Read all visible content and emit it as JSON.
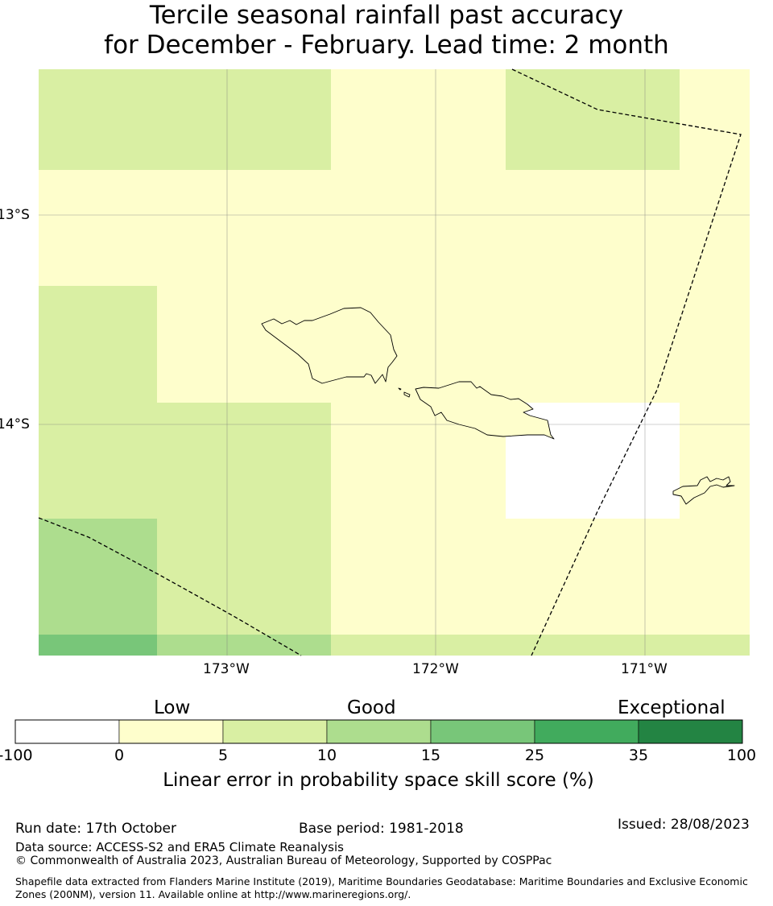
{
  "title": {
    "line1": "Tercile seasonal rainfall past accuracy",
    "line2": "for December - February. Lead time: 2 month"
  },
  "map": {
    "lat_labels": [
      "13°S",
      "14°S"
    ],
    "lon_labels": [
      "173°W",
      "172°W",
      "171°W"
    ],
    "colors": {
      "c0": "#fefecc",
      "c5": "#d9efa3",
      "c10": "#addd8e",
      "c15": "#78c679",
      "nodata": "#ffffff",
      "boundary": "#000000"
    }
  },
  "colorbar": {
    "categories": [
      "Low",
      "Good",
      "Exceptional"
    ],
    "ticks": [
      "-100",
      "0",
      "5",
      "10",
      "15",
      "25",
      "35",
      "100"
    ],
    "colors": [
      "#ffffff",
      "#fefecc",
      "#d9efa3",
      "#addd8e",
      "#78c679",
      "#41ab5d",
      "#238443"
    ],
    "title": "Linear error in probability space skill score (%)"
  },
  "footer": {
    "run_date": "Run date: 17th October",
    "base_period": "Base period: 1981-2018",
    "issued": "Issued: 28/08/2023",
    "data_source": "Data source: ACCESS-S2 and ERA5 Climate Reanalysis",
    "copyright": "© Commonwealth of Australia 2023, Australian Bureau of Meteorology, Supported by COSPPac",
    "shapefile": "Shapefile data extracted from Flanders Marine Institute (2019), Maritime Boundaries Geodatabase: Maritime Boundaries and Exclusive Economic Zones (200NM), version 11. Available online at http://www.marineregions.org/."
  }
}
